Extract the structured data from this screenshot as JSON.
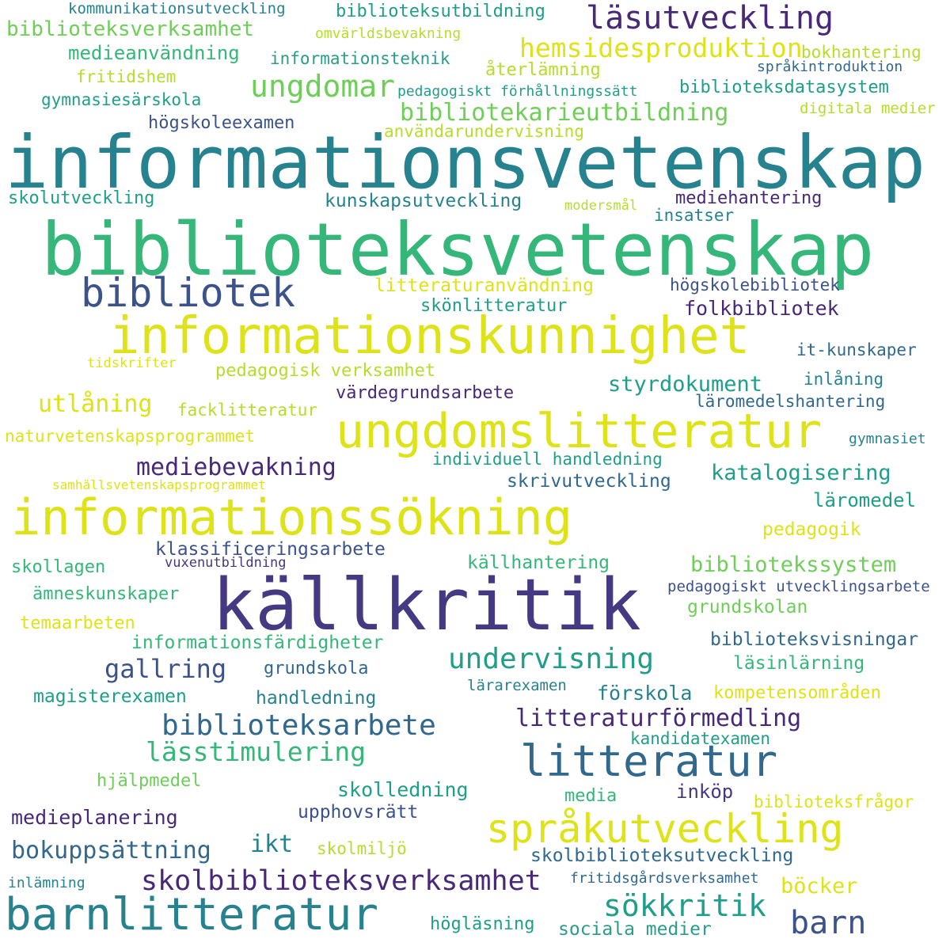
{
  "palette": {
    "dark_purple": "#482878",
    "indigo": "#443983",
    "slate_blue": "#3b528b",
    "steel_blue": "#31688e",
    "teal_blue": "#26828e",
    "teal": "#1f9e89",
    "green_teal": "#2a9d8a",
    "green": "#35b779",
    "light_green": "#6ece58",
    "lime": "#b5de2b",
    "yellow": "#dde318"
  },
  "words": [
    {
      "text": "informationsvetenskap",
      "color": "#26828e"
    },
    {
      "text": "biblioteksvetenskap",
      "color": "#35b779"
    },
    {
      "text": "källkritik",
      "color": "#443983"
    },
    {
      "text": "informationskunnighet",
      "color": "#dde318"
    },
    {
      "text": "ungdomslitteratur",
      "color": "#dde318"
    },
    {
      "text": "informationssökning",
      "color": "#dde318"
    },
    {
      "text": "barnlitteratur",
      "color": "#26828e"
    },
    {
      "text": "litteratur",
      "color": "#31688e"
    },
    {
      "text": "språkutveckling",
      "color": "#dde318"
    },
    {
      "text": "bibliotek",
      "color": "#3b528b"
    },
    {
      "text": "läsutveckling",
      "color": "#482878"
    },
    {
      "text": "ungdomar",
      "color": "#6ece58"
    },
    {
      "text": "hemsidesproduktion",
      "color": "#dde318"
    },
    {
      "text": "biblioteksarbete",
      "color": "#31688e"
    },
    {
      "text": "undervisning",
      "color": "#1f9e89"
    },
    {
      "text": "skolbiblioteksverksamhet",
      "color": "#482878"
    },
    {
      "text": "sökkritik",
      "color": "#1f9e89"
    },
    {
      "text": "barn",
      "color": "#3b528b"
    },
    {
      "text": "lässtimulering",
      "color": "#35b779"
    },
    {
      "text": "bibliotekarieutbildning",
      "color": "#6ece58"
    },
    {
      "text": "biblioteksverksamhet",
      "color": "#6ece58"
    },
    {
      "text": "mediebevakning",
      "color": "#482878"
    },
    {
      "text": "litteraturförmedling",
      "color": "#482878"
    },
    {
      "text": "gallring",
      "color": "#3b528b"
    },
    {
      "text": "bokuppsättning",
      "color": "#31688e"
    },
    {
      "text": "styrdokument",
      "color": "#1f9e89"
    },
    {
      "text": "utlåning",
      "color": "#dde318"
    },
    {
      "text": "katalogisering",
      "color": "#1f9e89"
    },
    {
      "text": "bibliotekssystem",
      "color": "#6ece58"
    },
    {
      "text": "ikt",
      "color": "#26828e"
    },
    {
      "text": "medieanvändning",
      "color": "#35b779"
    },
    {
      "text": "biblioteksutbildning",
      "color": "#1f9e89"
    },
    {
      "text": "kommunikationsutveckling",
      "color": "#26828e"
    },
    {
      "text": "omvärldsbevakning",
      "color": "#b5de2b"
    },
    {
      "text": "informationsteknik",
      "color": "#2a9d8a"
    },
    {
      "text": "återlämning",
      "color": "#b5de2b"
    },
    {
      "text": "bokhantering",
      "color": "#b5de2b"
    },
    {
      "text": "språkintroduktion",
      "color": "#31688e"
    },
    {
      "text": "fritidshem",
      "color": "#b5de2b"
    },
    {
      "text": "pedagogiskt förhållningssätt",
      "color": "#1f9e89"
    },
    {
      "text": "biblioteksdatasystem",
      "color": "#1f9e89"
    },
    {
      "text": "gymnasiesärskola",
      "color": "#1f9e89"
    },
    {
      "text": "digitala medier",
      "color": "#b5de2b"
    },
    {
      "text": "högskoleexamen",
      "color": "#3b528b"
    },
    {
      "text": "användarundervisning",
      "color": "#b5de2b"
    },
    {
      "text": "skolutveckling",
      "color": "#1f9e89"
    },
    {
      "text": "kunskapsutveckling",
      "color": "#26828e"
    },
    {
      "text": "mediehantering",
      "color": "#482878"
    },
    {
      "text": "modersmål",
      "color": "#b5de2b"
    },
    {
      "text": "insatser",
      "color": "#26828e"
    },
    {
      "text": "litteraturanvändning",
      "color": "#dde318"
    },
    {
      "text": "högskolebibliotek",
      "color": "#3b528b"
    },
    {
      "text": "skönlitteratur",
      "color": "#1f9e89"
    },
    {
      "text": "folkbibliotek",
      "color": "#482878"
    },
    {
      "text": "it-kunskaper",
      "color": "#31688e"
    },
    {
      "text": "tidskrifter",
      "color": "#dde318"
    },
    {
      "text": "pedagogisk verksamhet",
      "color": "#b5de2b"
    },
    {
      "text": "inlåning",
      "color": "#26828e"
    },
    {
      "text": "värdegrundsarbete",
      "color": "#482878"
    },
    {
      "text": "facklitteratur",
      "color": "#b5de2b"
    },
    {
      "text": "läromedelshantering",
      "color": "#31688e"
    },
    {
      "text": "naturvetenskapsprogrammet",
      "color": "#dde318"
    },
    {
      "text": "gymnasiet",
      "color": "#26828e"
    },
    {
      "text": "individuell handledning",
      "color": "#1f9e89"
    },
    {
      "text": "skrivutveckling",
      "color": "#31688e"
    },
    {
      "text": "samhällsvetenskapsprogrammet",
      "color": "#dde318"
    },
    {
      "text": "läromedel",
      "color": "#1f9e89"
    },
    {
      "text": "pedagogik",
      "color": "#dde318"
    },
    {
      "text": "klassificeringsarbete",
      "color": "#3b528b"
    },
    {
      "text": "skollagen",
      "color": "#35b779"
    },
    {
      "text": "vuxenutbildning",
      "color": "#443983"
    },
    {
      "text": "källhantering",
      "color": "#35b779"
    },
    {
      "text": "ämneskunskaper",
      "color": "#35b779"
    },
    {
      "text": "pedagogiskt utvecklingsarbete",
      "color": "#3b528b"
    },
    {
      "text": "temaarbeten",
      "color": "#dde318"
    },
    {
      "text": "grundskolan",
      "color": "#6ece58"
    },
    {
      "text": "informationsfärdigheter",
      "color": "#35b779"
    },
    {
      "text": "biblioteksvisningar",
      "color": "#31688e"
    },
    {
      "text": "grundskola",
      "color": "#31688e"
    },
    {
      "text": "läsinlärning",
      "color": "#35b779"
    },
    {
      "text": "magisterexamen",
      "color": "#1f9e89"
    },
    {
      "text": "handledning",
      "color": "#26828e"
    },
    {
      "text": "lärarexamen",
      "color": "#26828e"
    },
    {
      "text": "förskola",
      "color": "#26828e"
    },
    {
      "text": "kompetensområden",
      "color": "#dde318"
    },
    {
      "text": "kandidatexamen",
      "color": "#1f9e89"
    },
    {
      "text": "hjälpmedel",
      "color": "#6ece58"
    },
    {
      "text": "skolledning",
      "color": "#1f9e89"
    },
    {
      "text": "media",
      "color": "#35b779"
    },
    {
      "text": "inköp",
      "color": "#443983"
    },
    {
      "text": "biblioteksfrågor",
      "color": "#dde318"
    },
    {
      "text": "medieplanering",
      "color": "#482878"
    },
    {
      "text": "upphovsrätt",
      "color": "#3b528b"
    },
    {
      "text": "skolmiljö",
      "color": "#b5de2b"
    },
    {
      "text": "skolbiblioteksutveckling",
      "color": "#31688e"
    },
    {
      "text": "inlämning",
      "color": "#26828e"
    },
    {
      "text": "fritidsgårdsverksamhet",
      "color": "#31688e"
    },
    {
      "text": "böcker",
      "color": "#dde318"
    },
    {
      "text": "högläsning",
      "color": "#1f9e89"
    },
    {
      "text": "sociala medier",
      "color": "#2a9d8a"
    }
  ]
}
